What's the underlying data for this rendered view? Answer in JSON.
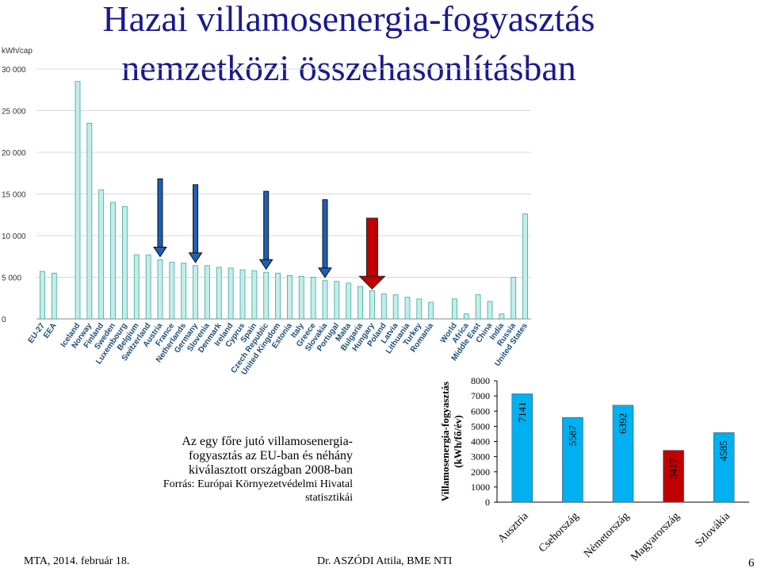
{
  "slide": {
    "title_line1": "Hazai villamosenergia-fogyasztás",
    "title_line2": "nemzetközi összehasonlításban",
    "caption_line1": "Az egy főre jutó villamosenergia-",
    "caption_line2": "fogyasztás az EU-ban és néhány",
    "caption_line3": "kiválasztott országban 2008-ban",
    "source_line1": "Forrás: Európai Környezetvédelmi Hivatal",
    "source_line2": "statisztikái",
    "footer_left": "MTA, 2014. február 18.",
    "footer_center": "Dr. ASZÓDI Attila, BME NTI",
    "page_number": "6"
  },
  "chart_data": [
    {
      "type": "bar",
      "title": "",
      "ylabel": "kWh/cap",
      "ylim": [
        0,
        30000
      ],
      "yticks": [
        0,
        5000,
        10000,
        15000,
        20000,
        25000,
        30000
      ],
      "ytick_labels": [
        "0",
        "5 000",
        "10 000",
        "15 000",
        "20 000",
        "25 000",
        "30 000"
      ],
      "grid": true,
      "bar_color": "#c6ece9",
      "bar_edge_color": "#3aa89e",
      "categories": [
        "EU-27",
        "EEA",
        "",
        "Iceland",
        "Norway",
        "Finland",
        "Sweden",
        "Luxembourg",
        "Belgium",
        "Switzerland",
        "Austria",
        "France",
        "Netherlands",
        "Germany",
        "Slovenia",
        "Denmark",
        "Ireland",
        "Cyprus",
        "Spain",
        "Czech Republic",
        "United Kingdom",
        "Estonia",
        "Italy",
        "Greece",
        "Slovakia",
        "Portugal",
        "Malta",
        "Bulgaria",
        "Hungary",
        "Poland",
        "Latvia",
        "Lithuania",
        "Turkey",
        "Romania",
        "",
        "World",
        "Africa",
        "Middle East",
        "China",
        "India",
        "Russia",
        "United States"
      ],
      "values": [
        5700,
        5500,
        null,
        28500,
        23500,
        15500,
        14000,
        13500,
        7700,
        7700,
        7100,
        6800,
        6700,
        6400,
        6400,
        6200,
        6100,
        5900,
        5800,
        5600,
        5500,
        5200,
        5100,
        5000,
        4600,
        4500,
        4300,
        3900,
        3400,
        3000,
        2900,
        2600,
        2400,
        2000,
        null,
        2400,
        600,
        2900,
        2100,
        600,
        5000,
        12600
      ],
      "markers": [
        {
          "category": "Austria",
          "color": "#1f5fb4",
          "direction": "down"
        },
        {
          "category": "Germany",
          "color": "#1f5fb4",
          "direction": "down"
        },
        {
          "category": "Czech Republic",
          "color": "#1f5fb4",
          "direction": "down"
        },
        {
          "category": "Slovakia",
          "color": "#1f5fb4",
          "direction": "down"
        },
        {
          "category": "Hungary",
          "color": "#c00000",
          "direction": "down"
        }
      ]
    },
    {
      "type": "bar",
      "title": "",
      "ylabel": "Villamosenergia-fogyasztás (kWh/fő/év)",
      "ylim": [
        0,
        8000
      ],
      "yticks": [
        0,
        1000,
        2000,
        3000,
        4000,
        5000,
        6000,
        7000,
        8000
      ],
      "ytick_labels": [
        "0",
        "1000",
        "2000",
        "3000",
        "4000",
        "5000",
        "6000",
        "7000",
        "8000"
      ],
      "grid": false,
      "categories": [
        "Ausztria",
        "Csehország",
        "Németország",
        "Magyarország",
        "Szlovákia"
      ],
      "values": [
        7141,
        5587,
        6392,
        3417,
        4585
      ],
      "data_labels": [
        "7141",
        "5587",
        "6392",
        "3417",
        "4585"
      ],
      "colors": [
        "#00b0f0",
        "#00b0f0",
        "#00b0f0",
        "#c00000",
        "#00b0f0"
      ]
    }
  ]
}
